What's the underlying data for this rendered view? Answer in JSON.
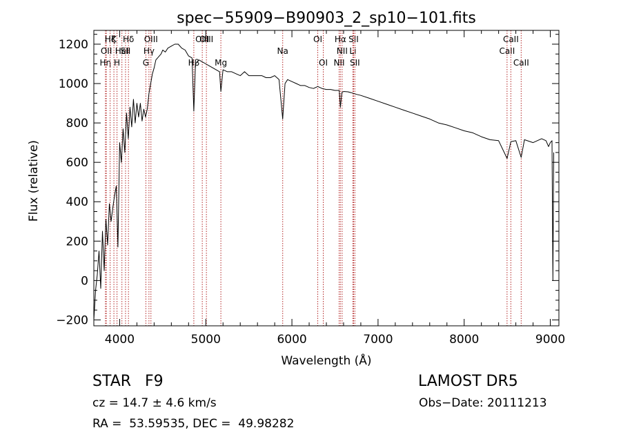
{
  "chart_data": {
    "type": "line",
    "title": "spec−55909−B90903_2_sp10−101.fits",
    "xlabel": "Wavelength (Å)",
    "ylabel": "Flux (relative)",
    "xlim": [
      3700,
      9100
    ],
    "ylim": [
      -230,
      1270
    ],
    "xticks": [
      4000,
      5000,
      6000,
      7000,
      8000,
      9000
    ],
    "yticks": [
      -200,
      0,
      200,
      400,
      600,
      800,
      1000,
      1200
    ],
    "grid": false,
    "legend": "none",
    "line_color": "#000000",
    "marker_color": "#b22222",
    "series": [
      {
        "x": [
          3700,
          3720,
          3740,
          3760,
          3780,
          3800,
          3820,
          3840,
          3860,
          3880,
          3900,
          3920,
          3940,
          3960,
          3980,
          4000,
          4020,
          4040,
          4060,
          4080,
          4100,
          4120,
          4140,
          4160,
          4180,
          4200,
          4220,
          4240,
          4260,
          4280,
          4300,
          4320,
          4340,
          4360,
          4380,
          4400,
          4420,
          4440,
          4460,
          4480,
          4500,
          4530,
          4560,
          4600,
          4640,
          4680,
          4720,
          4760,
          4800,
          4840,
          4861,
          4880,
          4920,
          4960,
          5000,
          5040,
          5080,
          5120,
          5160,
          5175,
          5200,
          5250,
          5300,
          5350,
          5400,
          5450,
          5500,
          5550,
          5600,
          5650,
          5700,
          5750,
          5800,
          5850,
          5893,
          5920,
          5950,
          6000,
          6050,
          6100,
          6150,
          6200,
          6250,
          6300,
          6350,
          6400,
          6450,
          6500,
          6550,
          6563,
          6580,
          6600,
          6650,
          6700,
          6750,
          6800,
          6900,
          7000,
          7100,
          7200,
          7300,
          7400,
          7500,
          7600,
          7700,
          7800,
          7900,
          8000,
          8100,
          8200,
          8300,
          8400,
          8498,
          8542,
          8600,
          8662,
          8700,
          8800,
          8900,
          8950,
          8980,
          9000,
          9020,
          9030,
          9040
        ],
        "values": [
          -200,
          -50,
          30,
          150,
          -40,
          250,
          50,
          310,
          180,
          390,
          300,
          370,
          430,
          480,
          170,
          700,
          600,
          770,
          650,
          850,
          720,
          880,
          780,
          920,
          800,
          900,
          830,
          900,
          810,
          870,
          830,
          870,
          950,
          1000,
          1050,
          1080,
          1120,
          1130,
          1140,
          1150,
          1170,
          1160,
          1180,
          1190,
          1200,
          1200,
          1180,
          1170,
          1140,
          1130,
          860,
          1100,
          1120,
          1110,
          1100,
          1090,
          1080,
          1070,
          1060,
          960,
          1070,
          1060,
          1060,
          1050,
          1040,
          1060,
          1040,
          1040,
          1040,
          1040,
          1030,
          1030,
          1040,
          1020,
          820,
          1000,
          1020,
          1010,
          1000,
          990,
          990,
          980,
          975,
          985,
          975,
          970,
          970,
          965,
          965,
          880,
          955,
          960,
          958,
          952,
          945,
          940,
          925,
          910,
          895,
          880,
          865,
          850,
          835,
          820,
          800,
          790,
          775,
          760,
          750,
          730,
          715,
          710,
          620,
          705,
          710,
          625,
          715,
          700,
          720,
          710,
          680,
          700,
          710,
          0,
          650
        ]
      }
    ],
    "line_markers": [
      {
        "x": 3835,
        "label": "Hη",
        "row": 3
      },
      {
        "x": 3845,
        "label": "OII",
        "row": 2
      },
      {
        "x": 3889,
        "label": "Hζ",
        "row": 1
      },
      {
        "x": 3933,
        "label": "K",
        "row": 1
      },
      {
        "x": 3969,
        "label": "H",
        "row": 3
      },
      {
        "x": 4026,
        "label": "HeI",
        "row": 2
      },
      {
        "x": 4068,
        "label": "SII",
        "row": 2
      },
      {
        "x": 4102,
        "label": "Hδ",
        "row": 1
      },
      {
        "x": 4304,
        "label": "G",
        "row": 3
      },
      {
        "x": 4340,
        "label": "Hγ",
        "row": 2
      },
      {
        "x": 4363,
        "label": "OIII",
        "row": 1
      },
      {
        "x": 4861,
        "label": "Hβ",
        "row": 3
      },
      {
        "x": 4959,
        "label": "OIII",
        "row": 1
      },
      {
        "x": 5007,
        "label": "OIII",
        "row": 1
      },
      {
        "x": 5175,
        "label": "Mg",
        "row": 3
      },
      {
        "x": 5893,
        "label": "Na",
        "row": 2
      },
      {
        "x": 6300,
        "label": "OI",
        "row": 1
      },
      {
        "x": 6364,
        "label": "OI",
        "row": 3
      },
      {
        "x": 6548,
        "label": "NII",
        "row": 3
      },
      {
        "x": 6563,
        "label": "Hα",
        "row": 1
      },
      {
        "x": 6583,
        "label": "NII",
        "row": 2
      },
      {
        "x": 6708,
        "label": "Li",
        "row": 2
      },
      {
        "x": 6716,
        "label": "SII",
        "row": 1
      },
      {
        "x": 6731,
        "label": "SII",
        "row": 3
      },
      {
        "x": 8498,
        "label": "CaII",
        "row": 2
      },
      {
        "x": 8542,
        "label": "CaII",
        "row": 1
      },
      {
        "x": 8662,
        "label": "CaII",
        "row": 3
      }
    ]
  },
  "info": {
    "object_type": "STAR",
    "spectral_type": "F9",
    "survey": "LAMOST DR5",
    "redshift": "cz = 14.7 ± 4.6 km/s",
    "obs_date": "Obs−Date: 20111213",
    "coordinates": "RA =  53.59535, DEC =  49.98282"
  }
}
